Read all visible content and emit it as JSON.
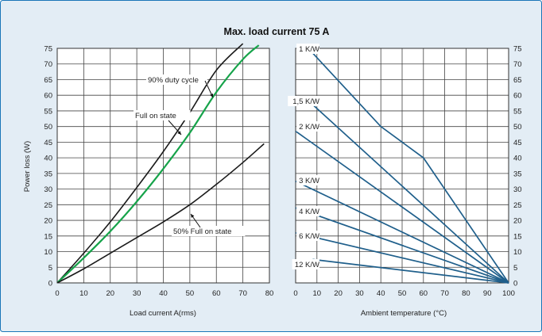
{
  "figure": {
    "title": "Max. load current 75 A",
    "background": "#e3edf5",
    "border_color": "#1a76b8"
  },
  "chart_data": [
    {
      "type": "line",
      "id": "left",
      "xlabel": "Load current A(rms)",
      "ylabel": "Power loss (W)",
      "xlim": [
        0,
        80
      ],
      "ylim": [
        0,
        75
      ],
      "x_ticks": [
        0,
        10,
        20,
        30,
        40,
        50,
        60,
        70,
        80
      ],
      "y_ticks": [
        0,
        5,
        10,
        15,
        20,
        25,
        30,
        35,
        40,
        45,
        50,
        55,
        60,
        65,
        70,
        75
      ],
      "grid": true,
      "series": [
        {
          "name": "90% duty cycle",
          "color": "#1a1a1a",
          "x": [
            0,
            10,
            20,
            30,
            40,
            50,
            60,
            70
          ],
          "y": [
            0,
            9.5,
            19.5,
            30.5,
            42,
            54.5,
            68,
            76.5
          ]
        },
        {
          "name": "Full on state",
          "color": "#16a34a",
          "x": [
            0,
            10,
            20,
            30,
            40,
            50,
            60,
            70,
            76
          ],
          "y": [
            0,
            8,
            16.5,
            26,
            36.5,
            48,
            61,
            71.5,
            76
          ]
        },
        {
          "name": "50% Full on state",
          "color": "#1a1a1a",
          "x": [
            0,
            10,
            20,
            30,
            40,
            50,
            60,
            70,
            78
          ],
          "y": [
            0,
            4.5,
            9.5,
            14.5,
            19.5,
            25,
            31.5,
            38.5,
            44.5
          ]
        }
      ]
    },
    {
      "type": "line",
      "id": "right",
      "xlabel": "Ambient temperature (°C)",
      "xlim": [
        0,
        100
      ],
      "ylim": [
        0,
        75
      ],
      "x_ticks": [
        0,
        10,
        20,
        30,
        40,
        50,
        60,
        70,
        80,
        90,
        100
      ],
      "y_ticks": [
        0,
        5,
        10,
        15,
        20,
        25,
        30,
        35,
        40,
        45,
        50,
        55,
        60,
        65,
        70,
        75
      ],
      "grid": true,
      "series_color": "#1f5f8b",
      "series": [
        {
          "name": "1 K/W",
          "x": [
            8,
            40,
            60,
            100
          ],
          "y": [
            73.5,
            50,
            40,
            0
          ]
        },
        {
          "name": "1,5 K/W",
          "x": [
            8,
            100
          ],
          "y": [
            57,
            0
          ]
        },
        {
          "name": "2 K/W",
          "x": [
            0,
            100
          ],
          "y": [
            48.5,
            0
          ]
        },
        {
          "name": "3 K/W",
          "x": [
            0,
            100
          ],
          "y": [
            32.5,
            0
          ]
        },
        {
          "name": "4 K/W",
          "x": [
            0,
            100
          ],
          "y": [
            24,
            0
          ]
        },
        {
          "name": "6 K/W",
          "x": [
            0,
            100
          ],
          "y": [
            16,
            0
          ]
        },
        {
          "name": "12 K/W",
          "x": [
            8,
            100
          ],
          "y": [
            7.5,
            0
          ]
        }
      ]
    }
  ]
}
